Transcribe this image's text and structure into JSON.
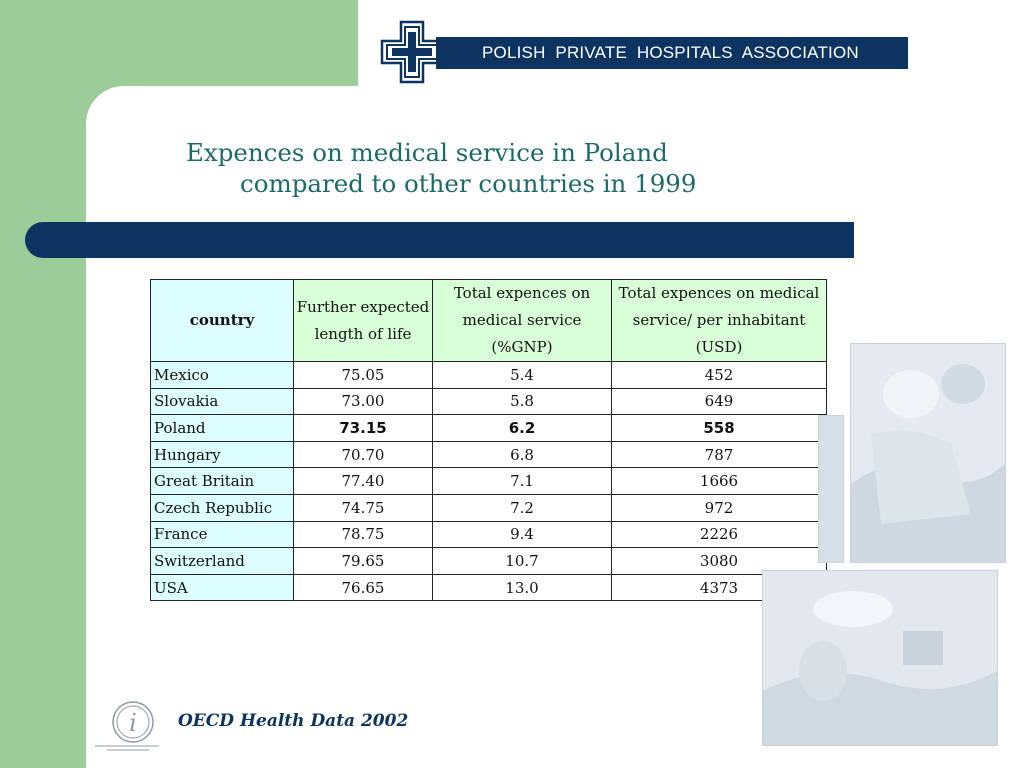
{
  "header": {
    "org_name": "POLISH  PRIVATE  HOSPITALS  ASSOCIATION",
    "brand_color": "#0d3461",
    "accent_color": "#9ccc98"
  },
  "title": {
    "line1": "Expences on medical service in Poland",
    "line2": "compared to other countries in 1999"
  },
  "table": {
    "headers": [
      "country",
      "Further expected length of life",
      "Total expences on medical service (%GNP)",
      "Total expences on medical service/ per inhabitant (USD)"
    ],
    "rows": [
      [
        "Mexico",
        "75.05",
        "5.4",
        "452"
      ],
      [
        "Slovakia",
        "73.00",
        "5.8",
        "649"
      ],
      [
        "Poland",
        "73.15",
        "6.2",
        "558"
      ],
      [
        "Hungary",
        "70.70",
        "6.8",
        "787"
      ],
      [
        "Great Britain",
        "77.40",
        "7.1",
        "1666"
      ],
      [
        "Czech Republic",
        "74.75",
        "7.2",
        "972"
      ],
      [
        "France",
        "78.75",
        "9.4",
        "2226"
      ],
      [
        "Switzerland",
        "79.65",
        "10.7",
        "3080"
      ],
      [
        "USA",
        "76.65",
        "13.0",
        "4373"
      ]
    ],
    "highlight_row": "Poland"
  },
  "footer": {
    "source": "OECD Health Data 2002",
    "icon": "info-icon"
  }
}
